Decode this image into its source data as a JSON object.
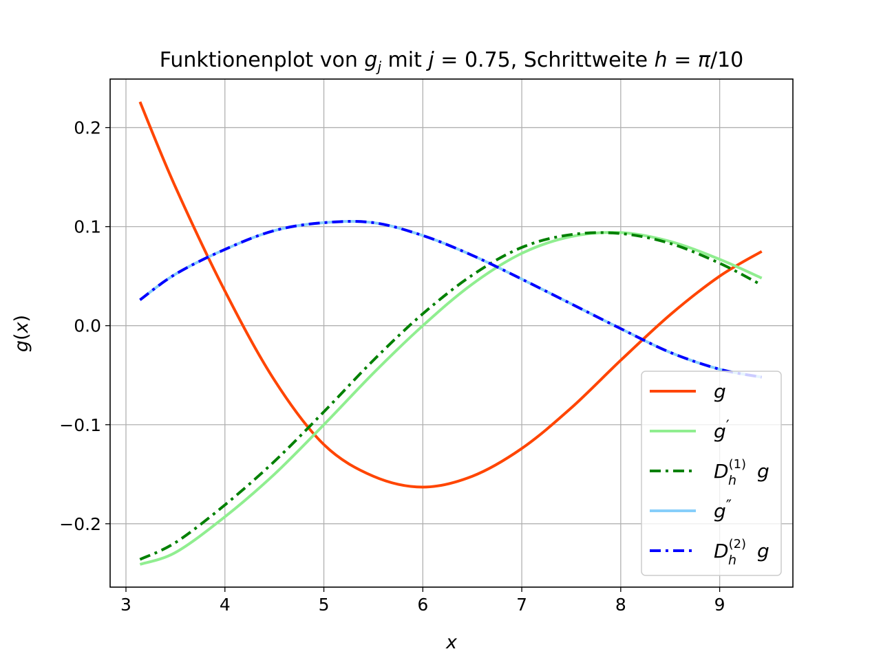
{
  "chart_data": {
    "type": "line",
    "title": "Funktionenplot von g_j mit j = 0.75, Schrittweite h = π/10",
    "title_parts": {
      "prefix": "Funktionenplot von ",
      "g": "g",
      "j_sub": "j",
      "mid": " mit ",
      "j": "j",
      "eq1": " = 0.75, Schrittweite ",
      "h": "h",
      "eq2": " = ",
      "pi": "π",
      "tail": "/10"
    },
    "xlabel": "x",
    "ylabel": "g(x)",
    "ylabel_parts": {
      "g": "g",
      "open": "(",
      "x": "x",
      "close": ")"
    },
    "xlim": [
      2.84,
      9.74
    ],
    "ylim": [
      -0.264,
      0.249
    ],
    "xticks": [
      3,
      4,
      5,
      6,
      7,
      8,
      9
    ],
    "xtick_labels": [
      "3",
      "4",
      "5",
      "6",
      "7",
      "8",
      "9"
    ],
    "yticks": [
      -0.2,
      -0.1,
      0.0,
      0.1,
      0.2
    ],
    "ytick_labels": [
      "−0.2",
      "−0.1",
      "0.0",
      "0.1",
      "0.2"
    ],
    "grid": true,
    "legend_position": "lower-right",
    "x": [
      3.1416,
      3.5,
      4.0,
      4.5,
      5.0,
      5.5,
      6.0,
      6.5,
      7.0,
      7.5,
      8.0,
      8.5,
      9.0,
      9.4248
    ],
    "series": [
      {
        "name": "g",
        "legend_label": {
          "base": "g"
        },
        "color": "#ff4500",
        "style": "solid",
        "values": [
          0.226,
          0.14,
          0.035,
          -0.055,
          -0.12,
          -0.152,
          -0.163,
          -0.152,
          -0.124,
          -0.083,
          -0.035,
          0.011,
          0.05,
          0.075
        ]
      },
      {
        "name": "g'",
        "legend_label": {
          "base": "g",
          "sup": "′"
        },
        "color": "#90ee90",
        "style": "solid",
        "values": [
          -0.241,
          -0.229,
          -0.193,
          -0.15,
          -0.1,
          -0.048,
          0.0,
          0.042,
          0.073,
          0.09,
          0.094,
          0.085,
          0.067,
          0.048
        ]
      },
      {
        "name": "D_h^(1) g",
        "legend_label": {
          "base": "D",
          "sub": "h",
          "sup": "(1)",
          "tail": "g"
        },
        "color": "#008000",
        "style": "dashdot",
        "values": [
          -0.236,
          -0.219,
          -0.181,
          -0.137,
          -0.087,
          -0.035,
          0.012,
          0.051,
          0.079,
          0.092,
          0.093,
          0.083,
          0.063,
          0.041
        ]
      },
      {
        "name": "g''",
        "legend_label": {
          "base": "g",
          "sup": "″"
        },
        "color": "#87cefa",
        "style": "solid",
        "values": [
          0.026,
          0.052,
          0.077,
          0.096,
          0.104,
          0.104,
          0.091,
          0.071,
          0.047,
          0.022,
          -0.003,
          -0.027,
          -0.044,
          -0.052
        ]
      },
      {
        "name": "D_h^(2) g",
        "legend_label": {
          "base": "D",
          "sub": "h",
          "sup": "(2)",
          "tail": "g"
        },
        "color": "#0000ff",
        "style": "dashdot",
        "values": [
          0.026,
          0.052,
          0.077,
          0.096,
          0.104,
          0.104,
          0.091,
          0.071,
          0.047,
          0.022,
          -0.003,
          -0.027,
          -0.044,
          -0.052
        ]
      }
    ]
  }
}
